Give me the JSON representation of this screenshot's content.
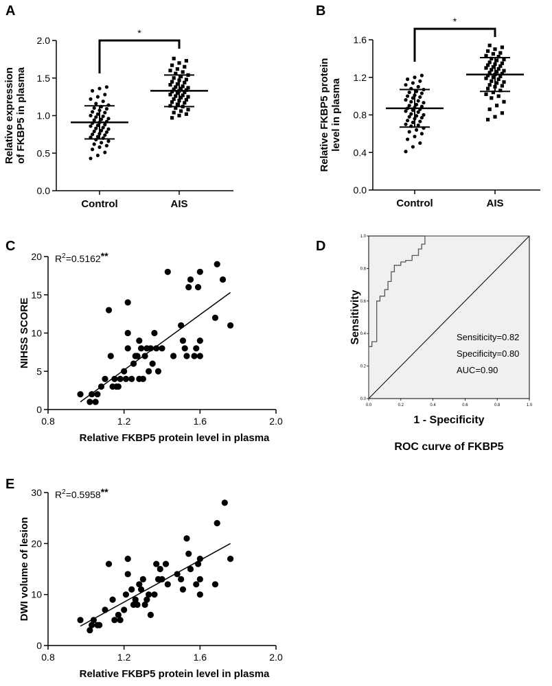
{
  "chart_data": [
    {
      "id": "A",
      "type": "scatter",
      "panel_label": "A",
      "ylabel_lines": [
        "Relative expression",
        "of FKBP5 in plasma"
      ],
      "categories": [
        "Control",
        "AIS"
      ],
      "ylim": [
        0,
        2.0
      ],
      "y_ticks": [
        "0.0",
        "0.5",
        "1.0",
        "1.5",
        "2.0"
      ],
      "significance": "*",
      "series": [
        {
          "name": "Control",
          "mean": 0.91,
          "sd_upper": 1.13,
          "sd_lower": 0.69,
          "values": [
            0.43,
            0.47,
            0.51,
            0.55,
            0.58,
            0.6,
            0.62,
            0.64,
            0.66,
            0.68,
            0.7,
            0.71,
            0.72,
            0.74,
            0.75,
            0.76,
            0.78,
            0.79,
            0.8,
            0.82,
            0.83,
            0.84,
            0.86,
            0.87,
            0.88,
            0.9,
            0.91,
            0.92,
            0.94,
            0.95,
            0.96,
            0.98,
            0.99,
            1.0,
            1.02,
            1.04,
            1.05,
            1.07,
            1.09,
            1.1,
            1.12,
            1.14,
            1.16,
            1.19,
            1.22,
            1.25,
            1.28,
            1.33,
            1.36,
            1.38
          ]
        },
        {
          "name": "AIS",
          "mean": 1.33,
          "sd_upper": 1.54,
          "sd_lower": 1.12,
          "values": [
            0.97,
            1.0,
            1.02,
            1.04,
            1.06,
            1.08,
            1.1,
            1.12,
            1.13,
            1.15,
            1.17,
            1.18,
            1.2,
            1.21,
            1.22,
            1.24,
            1.25,
            1.26,
            1.27,
            1.28,
            1.3,
            1.31,
            1.32,
            1.33,
            1.34,
            1.35,
            1.36,
            1.37,
            1.38,
            1.39,
            1.41,
            1.42,
            1.44,
            1.45,
            1.47,
            1.48,
            1.5,
            1.52,
            1.54,
            1.56,
            1.58,
            1.6,
            1.62,
            1.65,
            1.67,
            1.7,
            1.73,
            1.76
          ]
        }
      ]
    },
    {
      "id": "B",
      "type": "scatter",
      "panel_label": "B",
      "ylabel_lines": [
        "Relative FKBP5 protein",
        "level in plasma"
      ],
      "categories": [
        "Control",
        "AIS"
      ],
      "ylim": [
        0,
        1.6
      ],
      "y_ticks": [
        "0.0",
        "0.4",
        "0.8",
        "1.2",
        "1.6"
      ],
      "significance": "*",
      "series": [
        {
          "name": "Control",
          "mean": 0.87,
          "sd_upper": 1.07,
          "sd_lower": 0.67,
          "values": [
            0.41,
            0.46,
            0.5,
            0.54,
            0.57,
            0.6,
            0.62,
            0.64,
            0.66,
            0.68,
            0.69,
            0.7,
            0.72,
            0.73,
            0.74,
            0.76,
            0.77,
            0.78,
            0.79,
            0.8,
            0.81,
            0.83,
            0.84,
            0.85,
            0.86,
            0.87,
            0.88,
            0.89,
            0.9,
            0.91,
            0.93,
            0.94,
            0.95,
            0.96,
            0.98,
            0.99,
            1.0,
            1.01,
            1.03,
            1.04,
            1.05,
            1.07,
            1.08,
            1.1,
            1.12,
            1.14,
            1.16,
            1.18,
            1.2,
            1.22
          ]
        },
        {
          "name": "AIS",
          "mean": 1.23,
          "sd_upper": 1.41,
          "sd_lower": 1.05,
          "values": [
            0.75,
            0.78,
            0.82,
            0.86,
            0.9,
            0.94,
            0.98,
            1.0,
            1.02,
            1.04,
            1.06,
            1.08,
            1.1,
            1.11,
            1.12,
            1.14,
            1.15,
            1.16,
            1.18,
            1.19,
            1.2,
            1.21,
            1.22,
            1.23,
            1.24,
            1.25,
            1.26,
            1.27,
            1.28,
            1.29,
            1.3,
            1.31,
            1.32,
            1.33,
            1.34,
            1.35,
            1.36,
            1.38,
            1.39,
            1.4,
            1.42,
            1.43,
            1.45,
            1.46,
            1.48,
            1.5,
            1.52,
            1.54
          ]
        }
      ]
    },
    {
      "id": "C",
      "type": "scatter",
      "panel_label": "C",
      "xlabel": "Relative FKBP5 protein level in plasma",
      "ylabel": "NIHSS SCORE",
      "xlim": [
        0.8,
        2.0
      ],
      "ylim": [
        0,
        20
      ],
      "x_ticks": [
        "0.8",
        "1.2",
        "1.6",
        "2.0"
      ],
      "y_ticks": [
        "0",
        "5",
        "10",
        "15",
        "20"
      ],
      "r2_prefix": "R",
      "r2_sup": "2",
      "r2_value": "=0.5162",
      "significance": "**",
      "fit": {
        "x": [
          0.97,
          1.76
        ],
        "y": [
          1.0,
          15.3
        ]
      },
      "points": [
        [
          0.97,
          2
        ],
        [
          1.02,
          1
        ],
        [
          1.03,
          2
        ],
        [
          1.05,
          1
        ],
        [
          1.06,
          2
        ],
        [
          1.08,
          3
        ],
        [
          1.1,
          4
        ],
        [
          1.12,
          13
        ],
        [
          1.13,
          7
        ],
        [
          1.14,
          3
        ],
        [
          1.15,
          4
        ],
        [
          1.16,
          3
        ],
        [
          1.17,
          3
        ],
        [
          1.18,
          4
        ],
        [
          1.2,
          5
        ],
        [
          1.21,
          4
        ],
        [
          1.22,
          14
        ],
        [
          1.22,
          10
        ],
        [
          1.22,
          8
        ],
        [
          1.24,
          4
        ],
        [
          1.25,
          6
        ],
        [
          1.26,
          7
        ],
        [
          1.27,
          7
        ],
        [
          1.28,
          9
        ],
        [
          1.28,
          4
        ],
        [
          1.29,
          8
        ],
        [
          1.3,
          4
        ],
        [
          1.31,
          7
        ],
        [
          1.32,
          8
        ],
        [
          1.33,
          5
        ],
        [
          1.34,
          8
        ],
        [
          1.35,
          6
        ],
        [
          1.36,
          10
        ],
        [
          1.37,
          8
        ],
        [
          1.38,
          5
        ],
        [
          1.4,
          8
        ],
        [
          1.43,
          18
        ],
        [
          1.46,
          7
        ],
        [
          1.5,
          11
        ],
        [
          1.51,
          9
        ],
        [
          1.52,
          8
        ],
        [
          1.53,
          7
        ],
        [
          1.54,
          16
        ],
        [
          1.55,
          17
        ],
        [
          1.57,
          7
        ],
        [
          1.58,
          8
        ],
        [
          1.59,
          16
        ],
        [
          1.6,
          18
        ],
        [
          1.6,
          9
        ],
        [
          1.6,
          7
        ],
        [
          1.68,
          12
        ],
        [
          1.69,
          19
        ],
        [
          1.72,
          17
        ],
        [
          1.76,
          11
        ]
      ]
    },
    {
      "id": "D",
      "type": "line",
      "panel_label": "D",
      "xlabel": "1 - Specificity",
      "ylabel": "Sensitivity",
      "caption": "ROC curve of FKBP5",
      "xlim": [
        0,
        1.0
      ],
      "ylim": [
        0,
        1.0
      ],
      "x_ticks": [
        "0.0",
        "0.2",
        "0.4",
        "0.6",
        "0.8",
        "1.0"
      ],
      "y_ticks": [
        "0.0",
        "0.2",
        "0.4",
        "0.6",
        "0.8",
        "1.0"
      ],
      "annotations": [
        "Sensiticity=0.82",
        "Specificity=0.80",
        "AUC=0.90"
      ],
      "roc_curve": [
        [
          0,
          0
        ],
        [
          0,
          0.32
        ],
        [
          0.02,
          0.32
        ],
        [
          0.02,
          0.35
        ],
        [
          0.05,
          0.35
        ],
        [
          0.05,
          0.6
        ],
        [
          0.07,
          0.6
        ],
        [
          0.07,
          0.63
        ],
        [
          0.1,
          0.63
        ],
        [
          0.1,
          0.67
        ],
        [
          0.12,
          0.67
        ],
        [
          0.12,
          0.72
        ],
        [
          0.14,
          0.72
        ],
        [
          0.14,
          0.78
        ],
        [
          0.16,
          0.78
        ],
        [
          0.16,
          0.82
        ],
        [
          0.2,
          0.82
        ],
        [
          0.2,
          0.84
        ],
        [
          0.23,
          0.84
        ],
        [
          0.23,
          0.85
        ],
        [
          0.27,
          0.85
        ],
        [
          0.27,
          0.88
        ],
        [
          0.31,
          0.88
        ],
        [
          0.31,
          0.92
        ],
        [
          0.33,
          0.92
        ],
        [
          0.33,
          0.95
        ],
        [
          0.35,
          0.95
        ],
        [
          0.35,
          1.0
        ],
        [
          1.0,
          1.0
        ]
      ],
      "reference_line": [
        [
          0,
          0
        ],
        [
          1,
          1
        ]
      ]
    },
    {
      "id": "E",
      "type": "scatter",
      "panel_label": "E",
      "xlabel": "Relative FKBP5 protein level in plasma",
      "ylabel": "DWI volume of lesion",
      "xlim": [
        0.8,
        2.0
      ],
      "ylim": [
        0,
        30
      ],
      "x_ticks": [
        "0.8",
        "1.2",
        "1.6",
        "2.0"
      ],
      "y_ticks": [
        "0",
        "10",
        "20",
        "30"
      ],
      "r2_prefix": "R",
      "r2_sup": "2",
      "r2_value": "=0.5958",
      "significance": "**",
      "fit": {
        "x": [
          0.97,
          1.76
        ],
        "y": [
          3.8,
          20.0
        ]
      },
      "points": [
        [
          0.97,
          5
        ],
        [
          1.02,
          3
        ],
        [
          1.03,
          4
        ],
        [
          1.04,
          5
        ],
        [
          1.06,
          4
        ],
        [
          1.07,
          4
        ],
        [
          1.1,
          7
        ],
        [
          1.12,
          16
        ],
        [
          1.14,
          9
        ],
        [
          1.15,
          5
        ],
        [
          1.17,
          6
        ],
        [
          1.18,
          5
        ],
        [
          1.2,
          7
        ],
        [
          1.21,
          10
        ],
        [
          1.22,
          17
        ],
        [
          1.22,
          14
        ],
        [
          1.24,
          11
        ],
        [
          1.25,
          8
        ],
        [
          1.26,
          9
        ],
        [
          1.27,
          8
        ],
        [
          1.28,
          12
        ],
        [
          1.29,
          11
        ],
        [
          1.3,
          13
        ],
        [
          1.31,
          8
        ],
        [
          1.32,
          9
        ],
        [
          1.33,
          10
        ],
        [
          1.34,
          6
        ],
        [
          1.36,
          10
        ],
        [
          1.37,
          16
        ],
        [
          1.38,
          13
        ],
        [
          1.39,
          15
        ],
        [
          1.4,
          13
        ],
        [
          1.42,
          16
        ],
        [
          1.43,
          12
        ],
        [
          1.48,
          14
        ],
        [
          1.5,
          13
        ],
        [
          1.51,
          11
        ],
        [
          1.53,
          21
        ],
        [
          1.54,
          18
        ],
        [
          1.55,
          15
        ],
        [
          1.58,
          12
        ],
        [
          1.59,
          16
        ],
        [
          1.6,
          17
        ],
        [
          1.6,
          13
        ],
        [
          1.6,
          10
        ],
        [
          1.68,
          12
        ],
        [
          1.69,
          24
        ],
        [
          1.73,
          28
        ],
        [
          1.76,
          17
        ]
      ]
    }
  ]
}
